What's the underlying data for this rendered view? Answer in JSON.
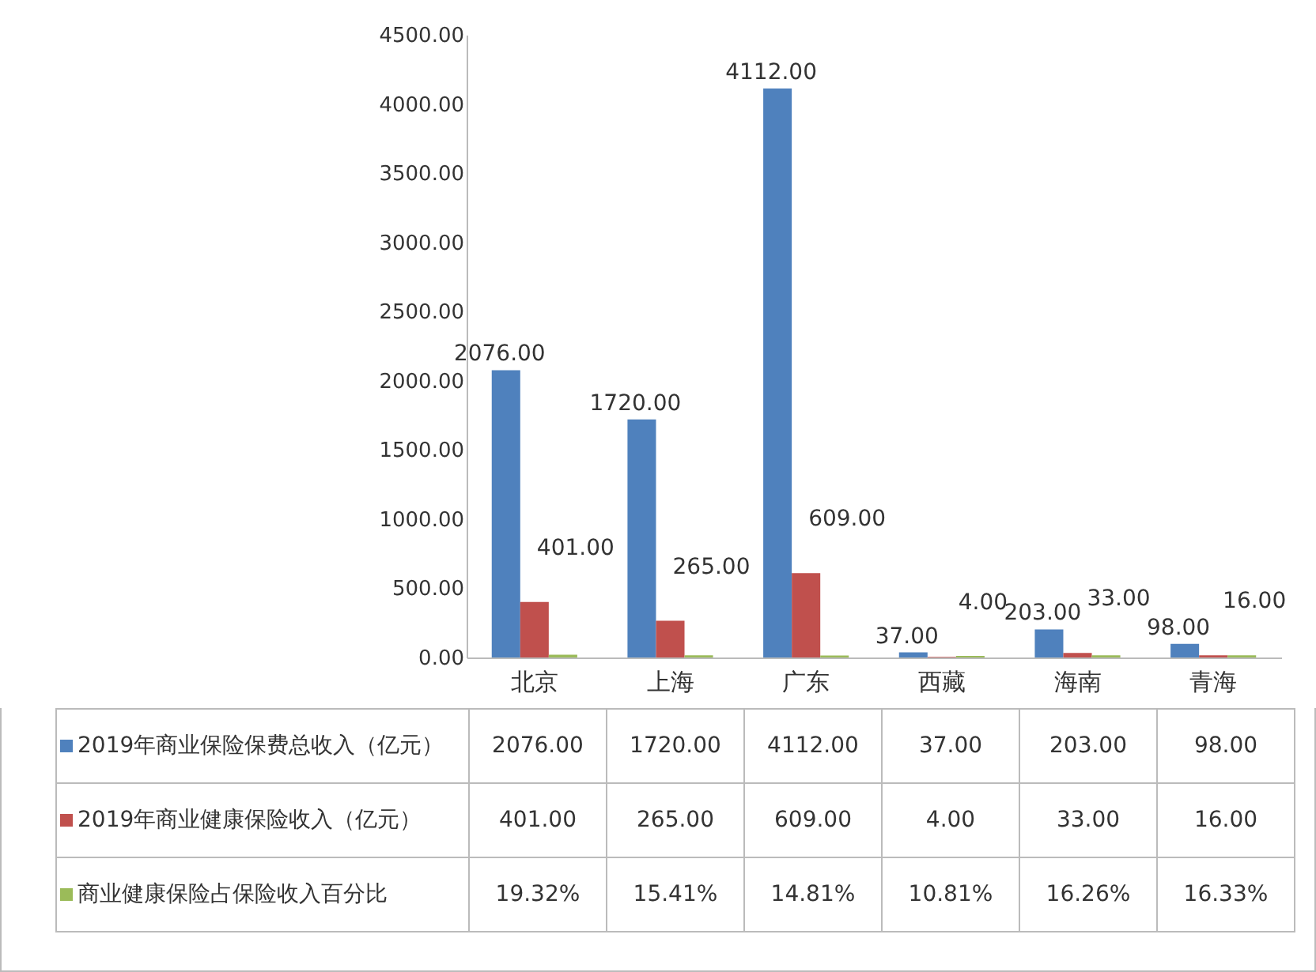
{
  "chart_data": {
    "type": "bar",
    "categories": [
      "北京",
      "上海",
      "广东",
      "西藏",
      "海南",
      "青海"
    ],
    "series": [
      {
        "name": "2019年商业保险保费总收入（亿元）",
        "color": "#4f81bd",
        "values": [
          2076,
          1720,
          4112,
          37,
          203,
          98
        ],
        "value_labels": [
          "2076.00",
          "1720.00",
          "4112.00",
          "37.00",
          "203.00",
          "98.00"
        ]
      },
      {
        "name": "2019年商业健康保险收入（亿元）",
        "color": "#c0504d",
        "values": [
          401,
          265,
          609,
          4,
          33,
          16
        ],
        "value_labels": [
          "401.00",
          "265.00",
          "609.00",
          "4.00",
          "33.00",
          "16.00"
        ]
      },
      {
        "name": "商业健康保险占保险收入百分比",
        "color": "#9bbb59",
        "values": [
          19.32,
          15.41,
          14.81,
          10.81,
          16.26,
          16.33
        ],
        "value_labels": [
          "19.32%",
          "15.41%",
          "14.81%",
          "10.81%",
          "16.26%",
          "16.33%"
        ]
      }
    ],
    "ylim": [
      0,
      4500
    ],
    "yticks": [
      {
        "value": 0,
        "label": "0.00"
      },
      {
        "value": 500,
        "label": "500.00"
      },
      {
        "value": 1000,
        "label": "1000.00"
      },
      {
        "value": 1500,
        "label": "1500.00"
      },
      {
        "value": 2000,
        "label": "2000.00"
      },
      {
        "value": 2500,
        "label": "2500.00"
      },
      {
        "value": 3000,
        "label": "3000.00"
      },
      {
        "value": 3500,
        "label": "3500.00"
      },
      {
        "value": 4000,
        "label": "4000.00"
      },
      {
        "value": 4500,
        "label": "4500.00"
      }
    ],
    "legend": "bottom",
    "grid": false
  }
}
